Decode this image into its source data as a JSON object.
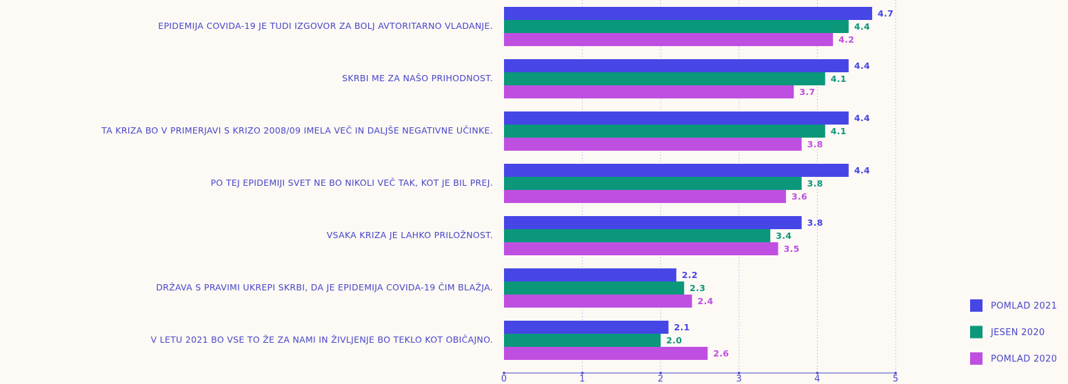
{
  "chart_data": {
    "type": "bar",
    "orientation": "horizontal",
    "categories": [
      "EPIDEMIJA COVIDA-19 JE TUDI IZGOVOR ZA BOLJ AVTORITARNO VLADANJE.",
      "SKRBI ME ZA NAŠO PRIHODNOST.",
      "TA KRIZA BO V PRIMERJAVI S KRIZO 2008/09 IMELA VEČ IN DALJŠE NEGATIVNE UČINKE.",
      "PO TEJ EPIDEMIJI SVET NE BO NIKOLI VEČ TAK, KOT JE BIL PREJ.",
      "VSAKA KRIZA JE LAHKO PRILOŽNOST.",
      "DRŽAVA S PRAVIMI UKREPI SKRBI, DA JE EPIDEMIJA COVIDA-19 ČIM BLAŽJA.",
      "V LETU 2021 BO VSE TO ŽE ZA NAMI IN ŽIVLJENJE BO TEKLO KOT OBIČAJNO."
    ],
    "series": [
      {
        "name": "POMLAD 2021",
        "color": "#4646e6",
        "values": [
          4.7,
          4.4,
          4.4,
          4.4,
          3.8,
          2.2,
          2.1
        ]
      },
      {
        "name": "JESEN 2020",
        "color": "#0b987a",
        "values": [
          4.4,
          4.1,
          4.1,
          3.8,
          3.4,
          2.3,
          2.0
        ],
        "value_labels": [
          "4.4",
          "4.1",
          "4.1",
          "3.8",
          "3.4",
          "2.3",
          "2.0"
        ]
      },
      {
        "name": "POMLAD 2020",
        "color": "#bf4fe0",
        "values": [
          4.2,
          3.7,
          3.8,
          3.6,
          3.5,
          2.4,
          2.6
        ]
      }
    ],
    "xlim": [
      0,
      5
    ],
    "xticks": [
      0,
      1,
      2,
      3,
      4,
      5
    ],
    "grid": true,
    "legend": "bottom-right"
  }
}
